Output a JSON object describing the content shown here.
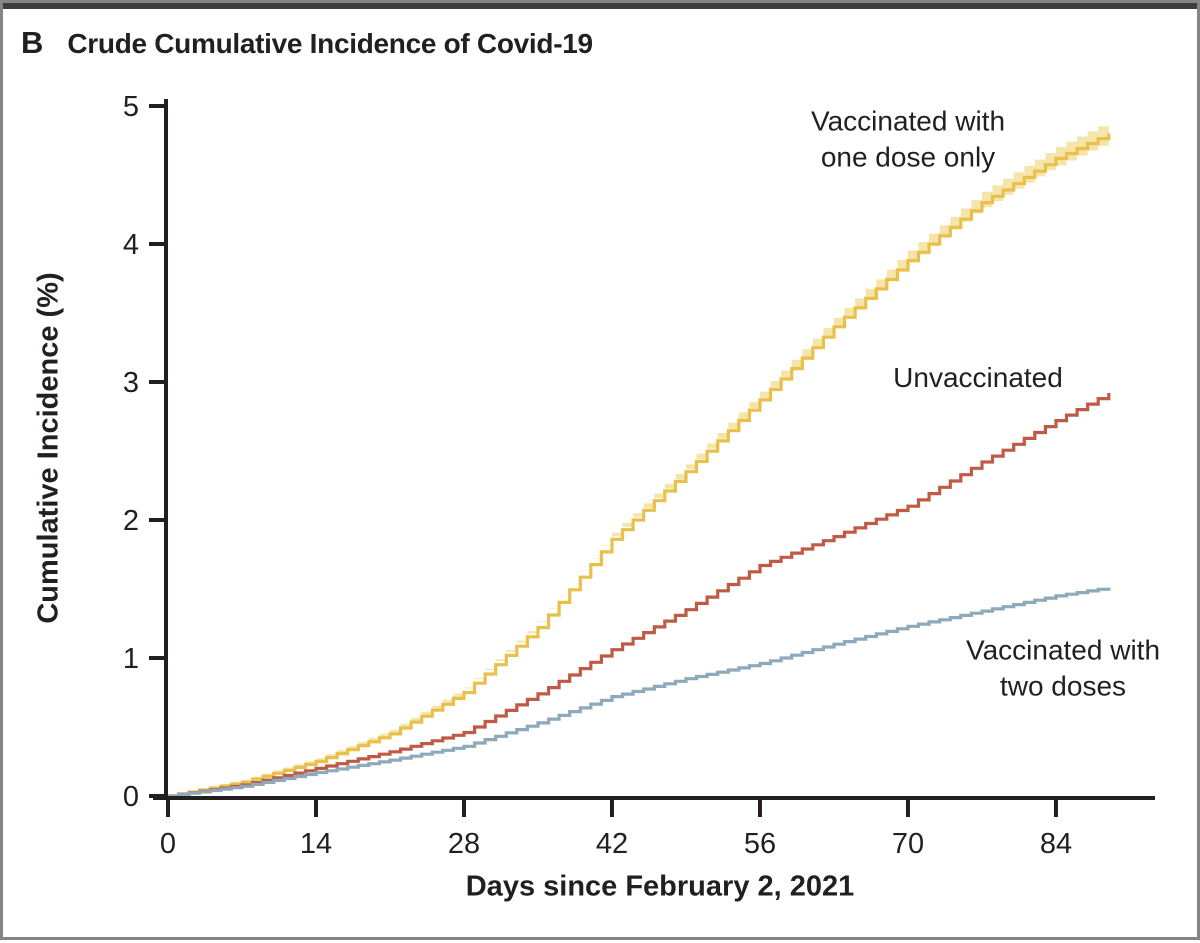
{
  "panel": {
    "label": "B",
    "title": "Crude Cumulative Incidence of Covid-19"
  },
  "chart_data": {
    "type": "line",
    "subtype": "step-cumulative-incidence-curves",
    "title": "Crude Cumulative Incidence of Covid-19",
    "xlabel": "Days since February 2, 2021",
    "ylabel": "Cumulative Incidence (%)",
    "xlim": [
      0,
      93
    ],
    "ylim": [
      0,
      5
    ],
    "xticks": [
      0,
      14,
      28,
      42,
      56,
      70,
      84
    ],
    "yticks": [
      0,
      1,
      2,
      3,
      4,
      5
    ],
    "grid": false,
    "legend_position": "inline-annotations",
    "axis_color": "#231f20",
    "series": [
      {
        "name": "Vaccinated with one dose only",
        "color": "#e9c04b",
        "band_color": "#f5e5ab",
        "has_band": true,
        "points": [
          [
            0,
            0
          ],
          [
            7,
            0.1
          ],
          [
            14,
            0.25
          ],
          [
            21,
            0.45
          ],
          [
            28,
            0.75
          ],
          [
            35,
            1.22
          ],
          [
            42,
            1.86
          ],
          [
            49,
            2.35
          ],
          [
            56,
            2.87
          ],
          [
            63,
            3.4
          ],
          [
            70,
            3.88
          ],
          [
            77,
            4.3
          ],
          [
            84,
            4.62
          ],
          [
            89,
            4.8
          ]
        ]
      },
      {
        "name": "Unvaccinated",
        "color": "#bf5b45",
        "has_band": false,
        "points": [
          [
            0,
            0
          ],
          [
            7,
            0.08
          ],
          [
            14,
            0.2
          ],
          [
            21,
            0.32
          ],
          [
            28,
            0.46
          ],
          [
            35,
            0.74
          ],
          [
            42,
            1.06
          ],
          [
            49,
            1.35
          ],
          [
            56,
            1.67
          ],
          [
            63,
            1.88
          ],
          [
            70,
            2.1
          ],
          [
            77,
            2.42
          ],
          [
            84,
            2.72
          ],
          [
            89,
            2.92
          ]
        ]
      },
      {
        "name": "Vaccinated with two doses",
        "color": "#8da9ba",
        "has_band": false,
        "points": [
          [
            0,
            0
          ],
          [
            7,
            0.07
          ],
          [
            14,
            0.17
          ],
          [
            21,
            0.26
          ],
          [
            28,
            0.36
          ],
          [
            35,
            0.53
          ],
          [
            42,
            0.72
          ],
          [
            49,
            0.85
          ],
          [
            56,
            0.96
          ],
          [
            63,
            1.1
          ],
          [
            70,
            1.23
          ],
          [
            77,
            1.34
          ],
          [
            84,
            1.45
          ],
          [
            89,
            1.51
          ]
        ]
      }
    ],
    "annotations": [
      {
        "lines": [
          "Vaccinated with",
          "one dose only"
        ]
      },
      {
        "lines": [
          "Unvaccinated"
        ]
      },
      {
        "lines": [
          "Vaccinated with",
          "two doses"
        ]
      }
    ]
  },
  "colors": {
    "text": "#231f20",
    "frame_border": "#858585",
    "top_bar": "#3d3d3d",
    "one_dose_line": "#e9c04b",
    "one_dose_band": "#f5e5ab",
    "unvaccinated_line": "#bf5b45",
    "two_dose_line": "#8da9ba"
  }
}
